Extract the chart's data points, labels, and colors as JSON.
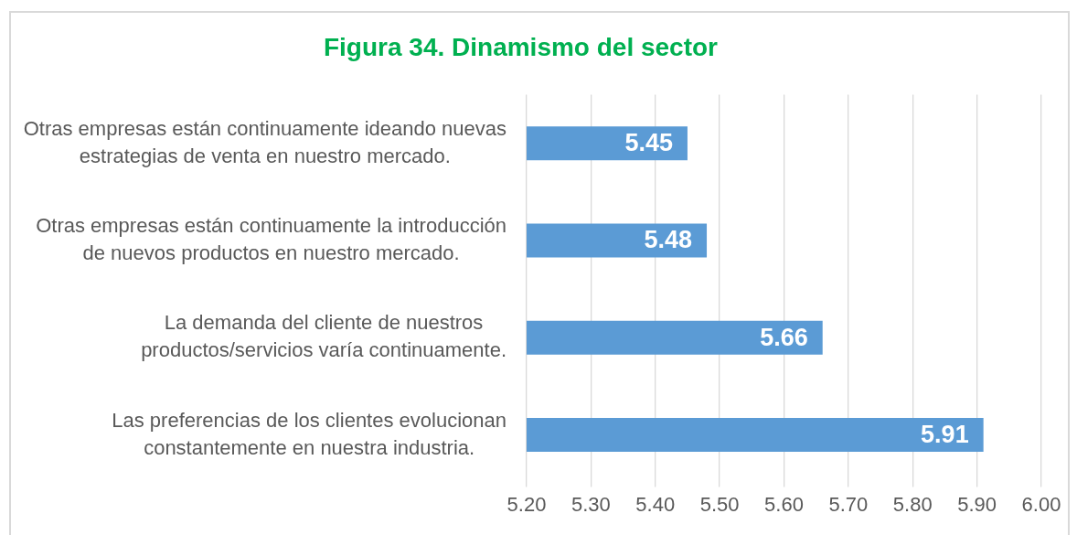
{
  "chart_data": {
    "type": "bar",
    "orientation": "horizontal",
    "title": "Figura 34. Dinamismo del sector",
    "categories": [
      "Otras empresas están continuamente ideando nuevas estrategias de venta en nuestro mercado.",
      "Otras empresas están continuamente la introducción de nuevos productos en nuestro mercado.",
      "La demanda del cliente de nuestros productos/servicios varía continuamente.",
      "Las preferencias de los clientes evolucionan constantemente en nuestra industria."
    ],
    "values": [
      5.45,
      5.48,
      5.66,
      5.91
    ],
    "color": "#5b9bd5",
    "xlim": [
      5.2,
      6.0
    ],
    "xticks": [
      {
        "value": 5.2,
        "label": "5.20"
      },
      {
        "value": 5.3,
        "label": "5.30"
      },
      {
        "value": 5.4,
        "label": "5.40"
      },
      {
        "value": 5.5,
        "label": "5.50"
      },
      {
        "value": 5.6,
        "label": "5.60"
      },
      {
        "value": 5.7,
        "label": "5.70"
      },
      {
        "value": 5.8,
        "label": "5.80"
      },
      {
        "value": 5.9,
        "label": "5.90"
      },
      {
        "value": 6.0,
        "label": "6.00"
      }
    ],
    "grid": "x",
    "data_labels": true,
    "legend": false
  }
}
